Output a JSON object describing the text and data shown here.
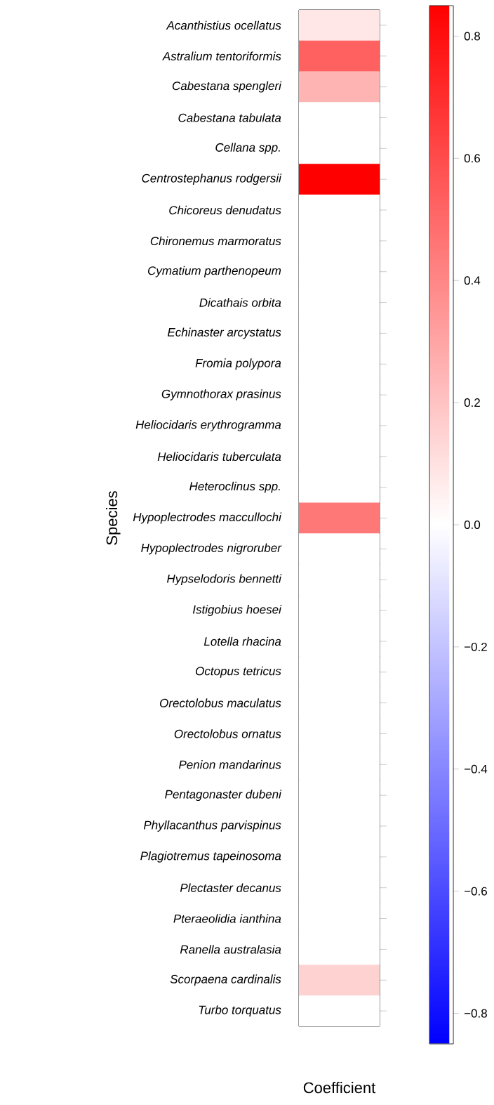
{
  "chart_data": {
    "type": "heatmap",
    "xlabel": "Coefficient",
    "ylabel": "Species",
    "categories": [
      null
    ],
    "y_categories": [
      "Acanthistius ocellatus",
      "Astralium tentoriformis",
      "Cabestana spengleri",
      "Cabestana tabulata",
      "Cellana spp.",
      "Centrostephanus rodgersii",
      "Chicoreus denudatus",
      "Chironemus marmoratus",
      "Cymatium parthenopeum",
      "Dicathais orbita",
      "Echinaster arcystatus",
      "Fromia polypora",
      "Gymnothorax prasinus",
      "Heliocidaris erythrogramma",
      "Heliocidaris tuberculata",
      "Heteroclinus spp.",
      "Hypoplectrodes maccullochi",
      "Hypoplectrodes nigroruber",
      "Hypselodoris bennetti",
      "Istigobius hoesei",
      "Lotella rhacina",
      "Octopus tetricus",
      "Orectolobus maculatus",
      "Orectolobus ornatus",
      "Penion mandarinus",
      "Pentagonaster dubeni",
      "Phyllacanthus parvispinus",
      "Plagiotremus tapeinosoma",
      "Plectaster decanus",
      "Pteraeolidia ianthina",
      "Ranella australasia",
      "Scorpaena cardinalis",
      "Turbo torquatus"
    ],
    "cells": [
      [
        0.08
      ],
      [
        0.53
      ],
      [
        0.25
      ],
      [
        0
      ],
      [
        0
      ],
      [
        0.85
      ],
      [
        0
      ],
      [
        0
      ],
      [
        0
      ],
      [
        0
      ],
      [
        0
      ],
      [
        0
      ],
      [
        0
      ],
      [
        0
      ],
      [
        0
      ],
      [
        0
      ],
      [
        0.45
      ],
      [
        0
      ],
      [
        0
      ],
      [
        0
      ],
      [
        0
      ],
      [
        0
      ],
      [
        0
      ],
      [
        0
      ],
      [
        0
      ],
      [
        0
      ],
      [
        0
      ],
      [
        0
      ],
      [
        0
      ],
      [
        0
      ],
      [
        0
      ],
      [
        0.15
      ],
      [
        0
      ]
    ],
    "clim": [
      -0.85,
      0.85
    ],
    "cticks": [
      {
        "value": -0.8,
        "label": "−0.8"
      },
      {
        "value": -0.6,
        "label": "−0.6"
      },
      {
        "value": -0.4,
        "label": "−0.4"
      },
      {
        "value": -0.2,
        "label": "−0.2"
      },
      {
        "value": 0,
        "label": "0.0"
      },
      {
        "value": 0.2,
        "label": "0.2"
      },
      {
        "value": 0.4,
        "label": "0.4"
      },
      {
        "value": 0.6,
        "label": "0.6"
      },
      {
        "value": 0.8,
        "label": "0.8"
      }
    ]
  }
}
